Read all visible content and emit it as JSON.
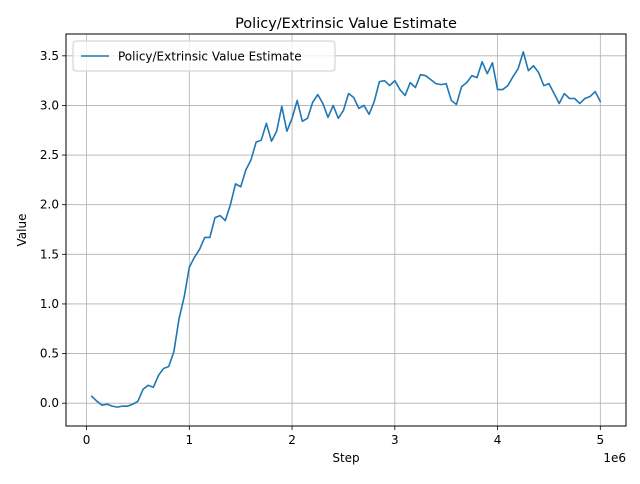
{
  "chart_data": {
    "type": "line",
    "title": "Policy/Extrinsic Value Estimate",
    "xlabel": "Step",
    "ylabel": "Value",
    "x_scale_label": "1e6",
    "xlim": [
      -0.2,
      5.25
    ],
    "ylim": [
      -0.23,
      3.72
    ],
    "x_ticks": [
      0,
      1,
      2,
      3,
      4,
      5
    ],
    "x_tick_labels": [
      "0",
      "1",
      "2",
      "3",
      "4",
      "5"
    ],
    "y_ticks": [
      0.0,
      0.5,
      1.0,
      1.5,
      2.0,
      2.5,
      3.0,
      3.5
    ],
    "y_tick_labels": [
      "0.0",
      "0.5",
      "1.0",
      "1.5",
      "2.0",
      "2.5",
      "3.0",
      "3.5"
    ],
    "grid": true,
    "legend_position": "top-left",
    "colors": {
      "series": "#1f77b4",
      "grid": "#b0b0b0",
      "axes": "#000000"
    },
    "series": [
      {
        "name": "Policy/Extrinsic Value Estimate",
        "x": [
          0.05,
          0.1,
          0.15,
          0.2,
          0.25,
          0.3,
          0.35,
          0.4,
          0.45,
          0.5,
          0.55,
          0.6,
          0.65,
          0.7,
          0.75,
          0.8,
          0.85,
          0.9,
          0.95,
          1.0,
          1.05,
          1.1,
          1.15,
          1.2,
          1.25,
          1.3,
          1.35,
          1.4,
          1.45,
          1.5,
          1.55,
          1.6,
          1.65,
          1.7,
          1.75,
          1.8,
          1.85,
          1.9,
          1.95,
          2.0,
          2.05,
          2.1,
          2.15,
          2.2,
          2.25,
          2.3,
          2.35,
          2.4,
          2.45,
          2.5,
          2.55,
          2.6,
          2.65,
          2.7,
          2.75,
          2.8,
          2.85,
          2.9,
          2.95,
          3.0,
          3.05,
          3.1,
          3.15,
          3.2,
          3.25,
          3.3,
          3.35,
          3.4,
          3.45,
          3.5,
          3.55,
          3.6,
          3.65,
          3.7,
          3.75,
          3.8,
          3.85,
          3.9,
          3.95,
          4.0,
          4.05,
          4.1,
          4.15,
          4.2,
          4.25,
          4.3,
          4.35,
          4.4,
          4.45,
          4.5,
          4.55,
          4.6,
          4.65,
          4.7,
          4.75,
          4.8,
          4.85,
          4.9,
          4.95,
          5.0
        ],
        "y": [
          0.07,
          0.02,
          -0.02,
          -0.01,
          -0.03,
          -0.04,
          -0.03,
          -0.03,
          -0.01,
          0.02,
          0.14,
          0.18,
          0.16,
          0.28,
          0.35,
          0.37,
          0.52,
          0.85,
          1.07,
          1.37,
          1.47,
          1.55,
          1.67,
          1.67,
          1.87,
          1.89,
          1.84,
          2.0,
          2.21,
          2.18,
          2.35,
          2.45,
          2.63,
          2.65,
          2.82,
          2.64,
          2.74,
          2.99,
          2.74,
          2.87,
          3.05,
          2.84,
          2.87,
          3.03,
          3.11,
          3.02,
          2.88,
          3.0,
          2.87,
          2.95,
          3.12,
          3.08,
          2.97,
          3.0,
          2.91,
          3.04,
          3.24,
          3.25,
          3.2,
          3.25,
          3.16,
          3.1,
          3.23,
          3.18,
          3.31,
          3.3,
          3.26,
          3.22,
          3.21,
          3.22,
          3.05,
          3.01,
          3.19,
          3.23,
          3.3,
          3.28,
          3.44,
          3.32,
          3.43,
          3.16,
          3.16,
          3.2,
          3.29,
          3.37,
          3.54,
          3.35,
          3.4,
          3.33,
          3.2,
          3.22,
          3.12,
          3.02,
          3.12,
          3.07,
          3.07,
          3.02,
          3.07,
          3.09,
          3.14,
          3.04
        ]
      }
    ]
  }
}
